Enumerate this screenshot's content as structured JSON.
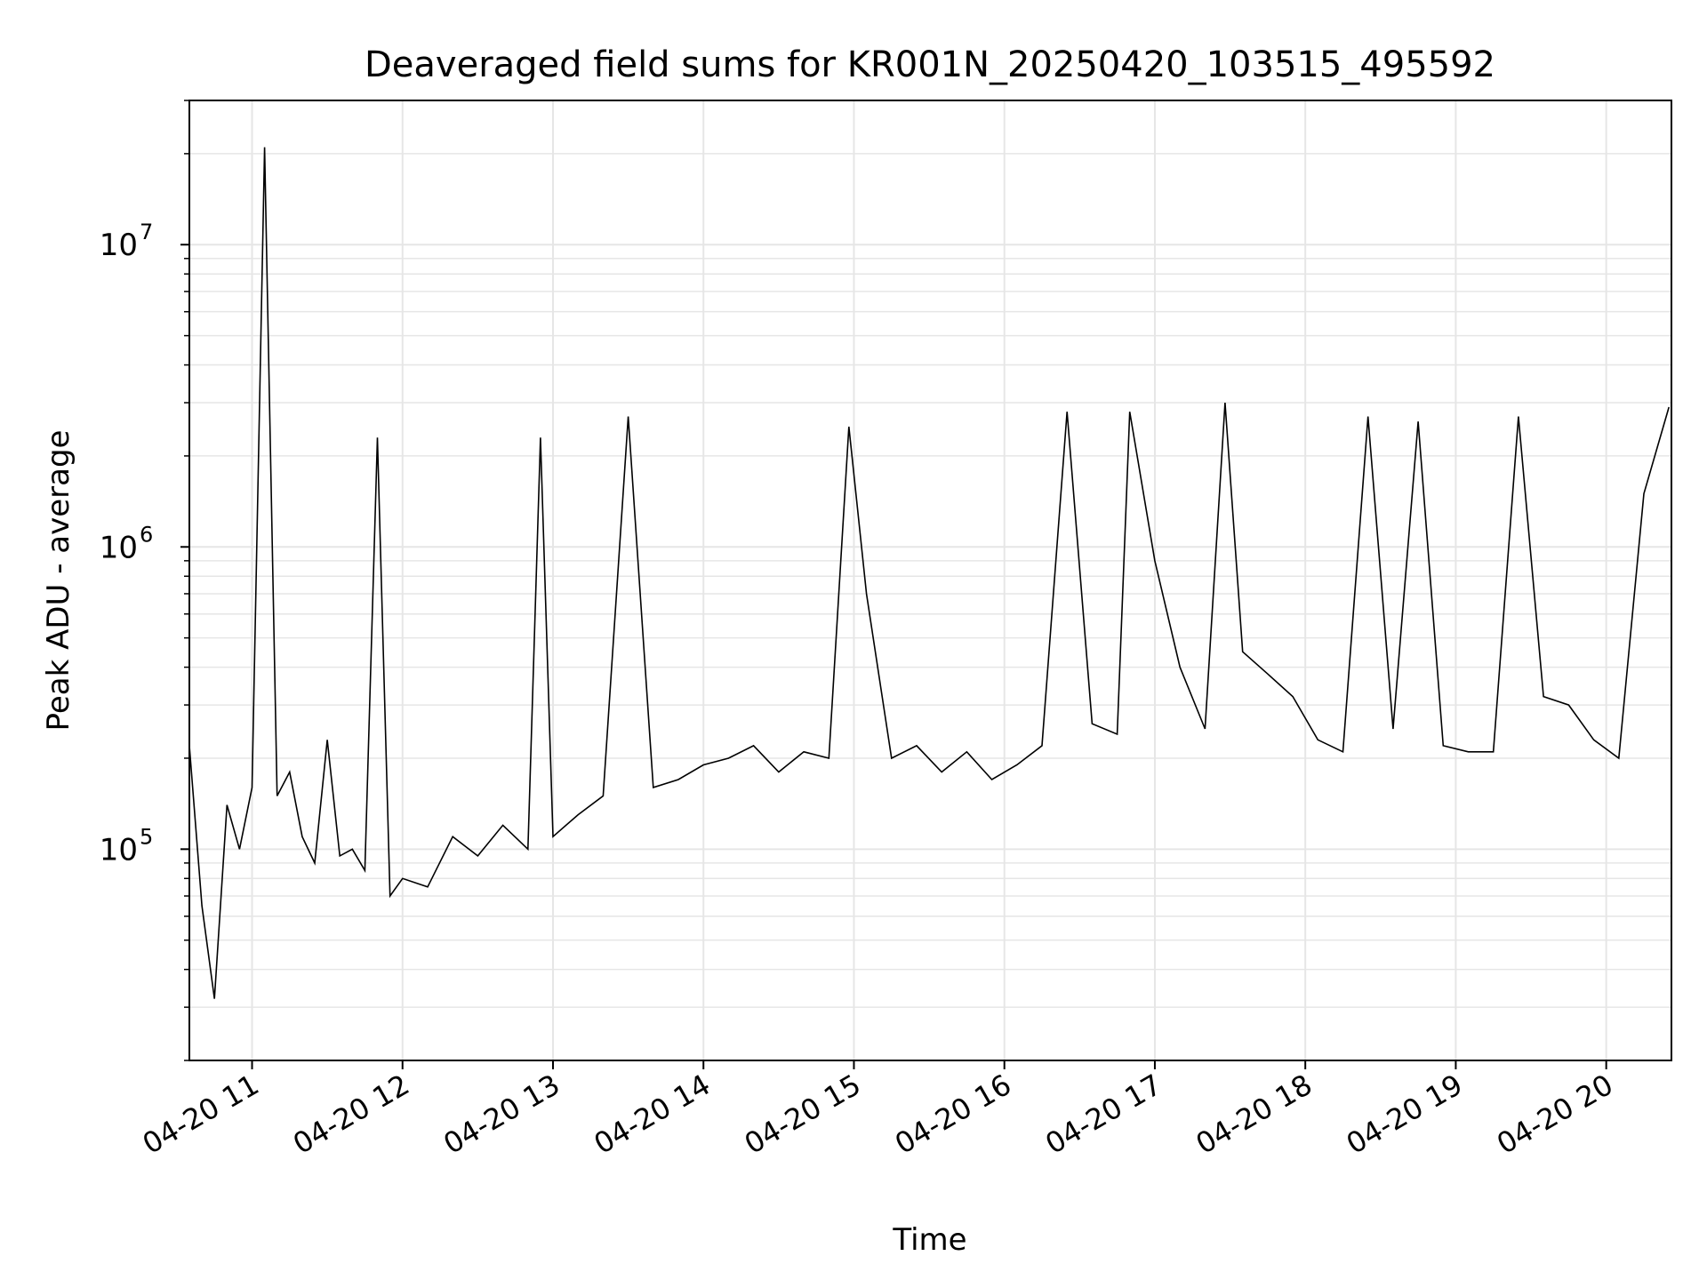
{
  "chart_data": {
    "type": "line",
    "title": "Deaveraged field sums for KR001N_20250420_103515_495592",
    "xlabel": "Time",
    "ylabel": "Peak ADU - average",
    "yscale": "log",
    "xlim": [
      "2025-04-20 10:35",
      "2025-04-20 20:26"
    ],
    "ylim": [
      20000,
      30000000
    ],
    "grid": true,
    "line_color": "#000000",
    "x_ticks": [
      {
        "label": "04-20 11",
        "time": "2025-04-20 11:00"
      },
      {
        "label": "04-20 12",
        "time": "2025-04-20 12:00"
      },
      {
        "label": "04-20 13",
        "time": "2025-04-20 13:00"
      },
      {
        "label": "04-20 14",
        "time": "2025-04-20 14:00"
      },
      {
        "label": "04-20 15",
        "time": "2025-04-20 15:00"
      },
      {
        "label": "04-20 16",
        "time": "2025-04-20 16:00"
      },
      {
        "label": "04-20 17",
        "time": "2025-04-20 17:00"
      },
      {
        "label": "04-20 18",
        "time": "2025-04-20 18:00"
      },
      {
        "label": "04-20 19",
        "time": "2025-04-20 19:00"
      },
      {
        "label": "04-20 20",
        "time": "2025-04-20 20:00"
      }
    ],
    "y_ticks": [
      {
        "label_base": "10",
        "label_exp": "5",
        "value": 100000
      },
      {
        "label_base": "10",
        "label_exp": "6",
        "value": 1000000
      },
      {
        "label_base": "10",
        "label_exp": "7",
        "value": 10000000
      }
    ],
    "series": [
      {
        "x": [
          "2025-04-20 10:35",
          "2025-04-20 10:40",
          "2025-04-20 10:45",
          "2025-04-20 10:50",
          "2025-04-20 10:55",
          "2025-04-20 11:00",
          "2025-04-20 11:05",
          "2025-04-20 11:10",
          "2025-04-20 11:15",
          "2025-04-20 11:20",
          "2025-04-20 11:25",
          "2025-04-20 11:30",
          "2025-04-20 11:35",
          "2025-04-20 11:40",
          "2025-04-20 11:45",
          "2025-04-20 11:50",
          "2025-04-20 11:55",
          "2025-04-20 12:00",
          "2025-04-20 12:10",
          "2025-04-20 12:20",
          "2025-04-20 12:30",
          "2025-04-20 12:40",
          "2025-04-20 12:50",
          "2025-04-20 12:55",
          "2025-04-20 13:00",
          "2025-04-20 13:10",
          "2025-04-20 13:20",
          "2025-04-20 13:30",
          "2025-04-20 13:40",
          "2025-04-20 13:50",
          "2025-04-20 14:00",
          "2025-04-20 14:10",
          "2025-04-20 14:20",
          "2025-04-20 14:30",
          "2025-04-20 14:40",
          "2025-04-20 14:50",
          "2025-04-20 14:58",
          "2025-04-20 15:05",
          "2025-04-20 15:15",
          "2025-04-20 15:25",
          "2025-04-20 15:35",
          "2025-04-20 15:45",
          "2025-04-20 15:55",
          "2025-04-20 16:05",
          "2025-04-20 16:15",
          "2025-04-20 16:25",
          "2025-04-20 16:35",
          "2025-04-20 16:45",
          "2025-04-20 16:50",
          "2025-04-20 17:00",
          "2025-04-20 17:10",
          "2025-04-20 17:20",
          "2025-04-20 17:28",
          "2025-04-20 17:35",
          "2025-04-20 17:45",
          "2025-04-20 17:55",
          "2025-04-20 18:05",
          "2025-04-20 18:15",
          "2025-04-20 18:25",
          "2025-04-20 18:35",
          "2025-04-20 18:45",
          "2025-04-20 18:55",
          "2025-04-20 19:05",
          "2025-04-20 19:15",
          "2025-04-20 19:25",
          "2025-04-20 19:35",
          "2025-04-20 19:45",
          "2025-04-20 19:55",
          "2025-04-20 20:05",
          "2025-04-20 20:15",
          "2025-04-20 20:25"
        ],
        "y": [
          220000,
          65000,
          32000,
          140000,
          100000,
          160000,
          21000000,
          150000,
          180000,
          110000,
          90000,
          230000,
          95000,
          100000,
          85000,
          2300000,
          70000,
          80000,
          75000,
          110000,
          95000,
          120000,
          100000,
          2300000,
          110000,
          130000,
          150000,
          2700000,
          160000,
          170000,
          190000,
          200000,
          220000,
          180000,
          210000,
          200000,
          2500000,
          700000,
          200000,
          220000,
          180000,
          210000,
          170000,
          190000,
          220000,
          2800000,
          260000,
          240000,
          2800000,
          900000,
          400000,
          250000,
          3000000,
          450000,
          380000,
          320000,
          230000,
          210000,
          2700000,
          250000,
          2600000,
          220000,
          210000,
          210000,
          2700000,
          320000,
          300000,
          230000,
          200000,
          1500000,
          2900000
        ]
      }
    ]
  }
}
